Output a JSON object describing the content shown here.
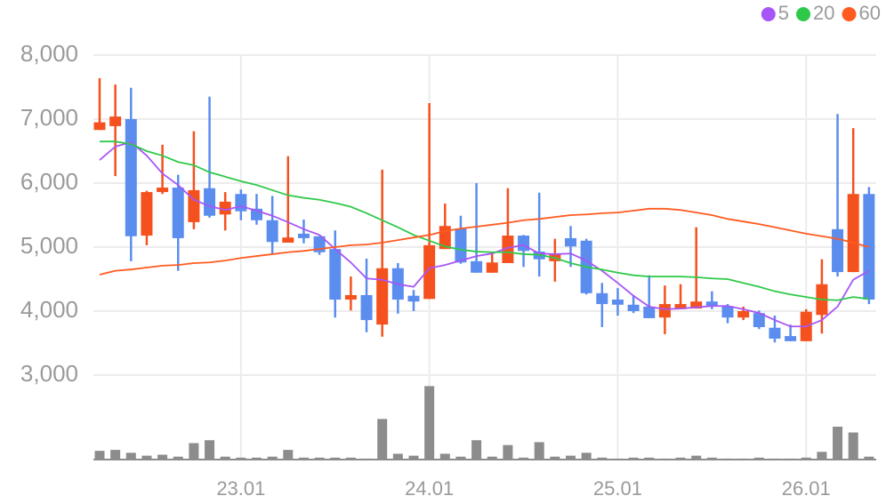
{
  "chart_data": {
    "type": "candlestick",
    "categories": [
      null,
      null,
      null,
      null,
      null,
      null,
      null,
      null,
      null,
      "23.01",
      null,
      null,
      null,
      null,
      null,
      null,
      null,
      null,
      null,
      null,
      null,
      "24.01",
      null,
      null,
      null,
      null,
      null,
      null,
      null,
      null,
      null,
      null,
      null,
      "25.01",
      null,
      null,
      null,
      null,
      null,
      null,
      null,
      null,
      null,
      null,
      null,
      "26.01",
      null,
      null,
      null,
      null
    ],
    "open": [
      6830,
      6890,
      7000,
      5180,
      5860,
      5930,
      5390,
      5920,
      5510,
      5830,
      5600,
      5420,
      5070,
      5210,
      5170,
      4970,
      4180,
      4250,
      3790,
      4670,
      4240,
      4190,
      4970,
      5290,
      4780,
      4600,
      4750,
      5180,
      4930,
      4780,
      5140,
      5100,
      4280,
      4180,
      4100,
      4070,
      3900,
      4030,
      4040,
      4150,
      4080,
      3900,
      3970,
      3740,
      3610,
      3530,
      3940,
      5280,
      4610,
      5830
    ],
    "high": [
      7640,
      7540,
      7490,
      5880,
      6600,
      6130,
      6810,
      7350,
      5860,
      5900,
      5830,
      5800,
      6420,
      5430,
      5170,
      5260,
      4540,
      4820,
      6210,
      4750,
      4330,
      7250,
      5680,
      5490,
      6000,
      4920,
      5920,
      5190,
      5850,
      5130,
      5330,
      5130,
      4440,
      4360,
      4250,
      4560,
      4400,
      4420,
      5310,
      4310,
      4110,
      4070,
      4010,
      3930,
      3790,
      4030,
      4810,
      7080,
      6860,
      5940
    ],
    "low": [
      6830,
      6110,
      4780,
      5030,
      5830,
      4630,
      5280,
      5460,
      5260,
      5420,
      5350,
      4890,
      5070,
      5060,
      4880,
      3900,
      4010,
      3670,
      3600,
      3960,
      4000,
      4190,
      4970,
      4740,
      4600,
      4600,
      4750,
      4690,
      4540,
      4460,
      4690,
      4260,
      3750,
      3930,
      3970,
      3890,
      3640,
      4030,
      4040,
      4030,
      3810,
      3860,
      3720,
      3510,
      3530,
      3530,
      3650,
      4540,
      4610,
      4110
    ],
    "close": [
      6950,
      7040,
      5170,
      5860,
      5930,
      5140,
      5890,
      5490,
      5710,
      5560,
      5420,
      5080,
      5150,
      5140,
      4920,
      4180,
      4250,
      3860,
      4670,
      4180,
      4150,
      5030,
      5330,
      4760,
      4600,
      4760,
      5180,
      4940,
      4810,
      4890,
      5010,
      4280,
      4110,
      4100,
      4000,
      3890,
      4110,
      4110,
      4150,
      4070,
      3900,
      4000,
      3750,
      3570,
      3530,
      3990,
      4420,
      4610,
      5830,
      4180
    ],
    "volume": [
      9,
      10,
      7,
      4,
      5,
      3,
      17,
      20,
      3,
      2,
      2,
      3,
      10,
      2,
      2,
      2,
      2,
      1,
      42,
      6,
      4,
      76,
      6,
      3,
      20,
      3,
      15,
      2,
      18,
      3,
      4,
      7,
      2,
      1,
      2,
      2,
      1,
      2,
      4,
      2,
      1,
      1,
      2,
      1,
      1,
      2,
      8,
      34,
      28,
      3
    ],
    "volume_lim": [
      0,
      80
    ],
    "up_color": "#f4511e",
    "down_color": "#5b8def",
    "volume_color": "#8c8c8c",
    "series": [
      {
        "name": "5",
        "color": "#a855f7",
        "values": [
          6360,
          6570,
          6640,
          6430,
          6150,
          5970,
          5740,
          5640,
          5580,
          5640,
          5570,
          5490,
          5390,
          5280,
          5190,
          4970,
          4760,
          4510,
          4490,
          4420,
          4380,
          4670,
          4720,
          4790,
          4860,
          4900,
          4990,
          5030,
          4900,
          4890,
          4900,
          4790,
          4630,
          4440,
          4240,
          4070,
          4030,
          4040,
          4060,
          4080,
          4080,
          4030,
          3970,
          3860,
          3760,
          3760,
          3860,
          4070,
          4490,
          4630
        ]
      },
      {
        "name": "20",
        "color": "#2fc94a",
        "values": [
          6650,
          6650,
          6610,
          6500,
          6430,
          6330,
          6280,
          6170,
          6100,
          6030,
          5970,
          5890,
          5810,
          5770,
          5740,
          5690,
          5630,
          5530,
          5420,
          5310,
          5190,
          5100,
          5010,
          4960,
          4930,
          4920,
          4920,
          4890,
          4880,
          4830,
          4750,
          4690,
          4650,
          4600,
          4560,
          4540,
          4540,
          4540,
          4530,
          4510,
          4500,
          4440,
          4380,
          4310,
          4260,
          4220,
          4180,
          4170,
          4220,
          4190
        ]
      },
      {
        "name": "60",
        "color": "#ff5a1f",
        "values": [
          4570,
          4630,
          4650,
          4680,
          4710,
          4720,
          4750,
          4760,
          4790,
          4830,
          4860,
          4890,
          4920,
          4940,
          4970,
          5000,
          5030,
          5040,
          5070,
          5110,
          5150,
          5190,
          5250,
          5290,
          5320,
          5350,
          5380,
          5420,
          5440,
          5470,
          5500,
          5510,
          5530,
          5540,
          5570,
          5600,
          5600,
          5580,
          5540,
          5500,
          5440,
          5400,
          5360,
          5310,
          5260,
          5210,
          5170,
          5130,
          5070,
          5000
        ]
      }
    ],
    "ylim": [
      3000,
      8000
    ],
    "yticks": [
      {
        "value": 3000,
        "label": "3,000"
      },
      {
        "value": 4000,
        "label": "4,000"
      },
      {
        "value": 5000,
        "label": "5,000"
      },
      {
        "value": 6000,
        "label": "6,000"
      },
      {
        "value": 7000,
        "label": "7,000"
      },
      {
        "value": 8000,
        "label": "8,000"
      }
    ],
    "grid": true,
    "legend": "top-right"
  }
}
